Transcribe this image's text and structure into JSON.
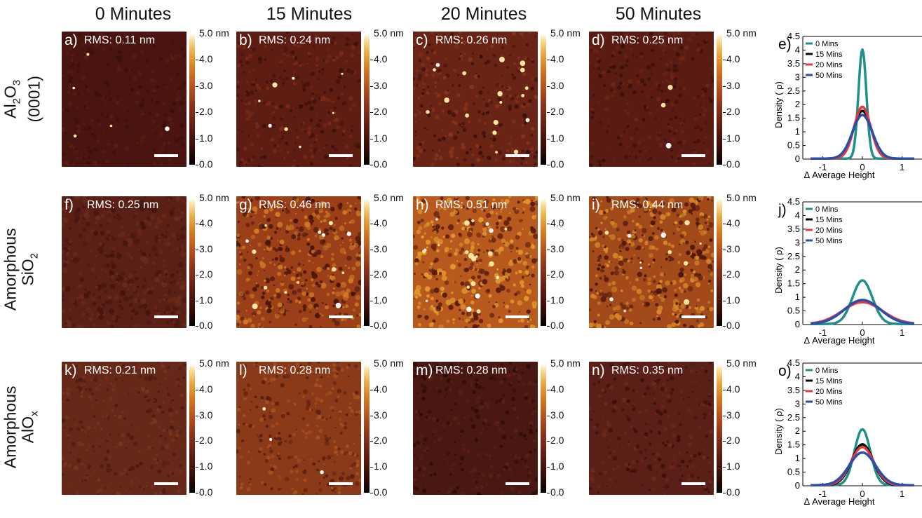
{
  "column_titles": [
    "0 Minutes",
    "15 Minutes",
    "20 Minutes",
    "50 Minutes"
  ],
  "row_labels": [
    {
      "line1": "Al",
      "sub1": "2",
      "line1b": "O",
      "sub1b": "3",
      "line2": "(0001)"
    },
    {
      "line1": "Amorphous",
      "line2": "SiO",
      "sub2": "2"
    },
    {
      "line1": "Amorphous",
      "line2": "AlO",
      "sub2": "x"
    }
  ],
  "panels": [
    {
      "label": "a)",
      "rms": "RMS: 0.11 nm"
    },
    {
      "label": "b)",
      "rms": "RMS: 0.24 nm"
    },
    {
      "label": "c)",
      "rms": "RMS: 0.26 nm"
    },
    {
      "label": "d)",
      "rms": "RMS: 0.25 nm"
    },
    {
      "label": "f)",
      "rms": "RMS: 0.25 nm"
    },
    {
      "label": "g)",
      "rms": "RMS: 0.46 nm"
    },
    {
      "label": "h)",
      "rms": "RMS: 0.51 nm"
    },
    {
      "label": "i)",
      "rms": "RMS: 0.44 nm"
    },
    {
      "label": "k)",
      "rms": "RMS: 0.21 nm"
    },
    {
      "label": "l)",
      "rms": "RMS: 0.28 nm"
    },
    {
      "label": "m)",
      "rms": "RMS: 0.28 nm"
    },
    {
      "label": "n)",
      "rms": "RMS: 0.35 nm"
    }
  ],
  "colorbar": {
    "ticks": [
      "5.0 nm",
      "4.0",
      "3.0",
      "2.0",
      "1.0",
      "0.0"
    ]
  },
  "colors": {
    "s0": "#1f8f8a",
    "s15": "#000000",
    "s20": "#e8383f",
    "s50": "#2a4fa8"
  },
  "chart_data": [
    {
      "type": "line",
      "label": "e)",
      "xlabel": "Δ Average Height",
      "ylabel": "Density ( ρ)",
      "xlim": [
        -1.5,
        1.5
      ],
      "ylim": [
        0,
        4.5
      ],
      "xticks": [
        "-1",
        "0",
        "1"
      ],
      "yticks": [
        "0",
        "0.5",
        "1",
        "1.5",
        "2",
        "2.5",
        "3",
        "3.5",
        "4",
        "4.5"
      ],
      "legend_position": "top-left",
      "series": [
        {
          "name": "0 Mins",
          "color": "#1f8f8a",
          "peak": 4.0,
          "sigma": 0.1
        },
        {
          "name": "15 Mins",
          "color": "#000000",
          "peak": 1.75,
          "sigma": 0.23
        },
        {
          "name": "20 Mins",
          "color": "#e8383f",
          "peak": 1.9,
          "sigma": 0.21
        },
        {
          "name": "50 Mins",
          "color": "#2a4fa8",
          "peak": 1.6,
          "sigma": 0.25
        }
      ]
    },
    {
      "type": "line",
      "label": "j)",
      "xlabel": "Δ Average Height",
      "ylabel": "Density ( ρ)",
      "xlim": [
        -1.5,
        1.5
      ],
      "ylim": [
        0,
        4.5
      ],
      "xticks": [
        "-1",
        "0",
        "1"
      ],
      "yticks": [
        "0",
        "0.5",
        "1",
        "1.5",
        "2",
        "2.5",
        "3",
        "3.5",
        "4",
        "4.5"
      ],
      "legend_position": "top-left",
      "series": [
        {
          "name": "0 Mins",
          "color": "#1f8f8a",
          "peak": 1.6,
          "sigma": 0.25
        },
        {
          "name": "15 Mins",
          "color": "#000000",
          "peak": 0.85,
          "sigma": 0.47
        },
        {
          "name": "20 Mins",
          "color": "#e8383f",
          "peak": 0.8,
          "sigma": 0.5
        },
        {
          "name": "50 Mins",
          "color": "#2a4fa8",
          "peak": 0.88,
          "sigma": 0.45
        }
      ]
    },
    {
      "type": "line",
      "label": "o)",
      "xlabel": "Δ Average Height",
      "ylabel": "Density ( ρ)",
      "xlim": [
        -1.5,
        1.5
      ],
      "ylim": [
        0,
        4.5
      ],
      "xticks": [
        "-1",
        "0",
        "1"
      ],
      "yticks": [
        "0",
        "0.5",
        "1",
        "1.5",
        "2",
        "2.5",
        "3",
        "3.5",
        "4",
        "4.5"
      ],
      "legend_position": "top-left",
      "series": [
        {
          "name": "0 Mins",
          "color": "#1f8f8a",
          "peak": 2.05,
          "sigma": 0.2
        },
        {
          "name": "15 Mins",
          "color": "#000000",
          "peak": 1.5,
          "sigma": 0.27
        },
        {
          "name": "20 Mins",
          "color": "#e8383f",
          "peak": 1.4,
          "sigma": 0.29
        },
        {
          "name": "50 Mins",
          "color": "#2a4fa8",
          "peak": 1.2,
          "sigma": 0.33
        }
      ]
    }
  ]
}
